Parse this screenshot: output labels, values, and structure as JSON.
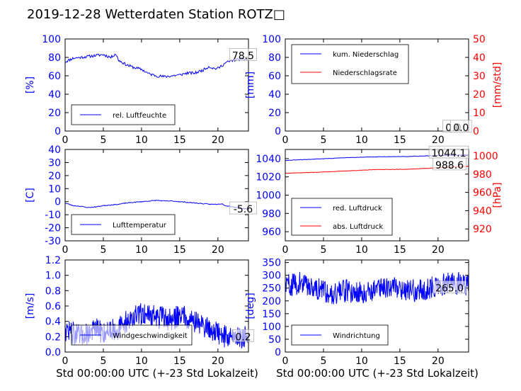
{
  "figure": {
    "title": "2019-12-28 Wetterdaten Station ROTZ□",
    "xlabel": "Std 00:00:00 UTC (+-23 Std Lokalzeit)"
  },
  "colors": {
    "blue": "#0000ff",
    "red": "#ff0000",
    "black": "#000000"
  },
  "chart_data": [
    {
      "id": "humidity",
      "type": "line",
      "ylabel": "[%]",
      "xlim": [
        0,
        24
      ],
      "ylim": [
        0,
        100
      ],
      "xticks": [
        0,
        5,
        10,
        15,
        20
      ],
      "yticks": [
        0,
        20,
        40,
        60,
        80,
        100
      ],
      "legend_position": "lower-left",
      "series": [
        {
          "name": "rel. Luftfeuchte",
          "color": "#0000ff",
          "noise": 1.5,
          "seed": 11,
          "x": [
            0,
            0.5,
            1,
            2,
            3,
            4,
            5,
            6,
            6.6,
            7,
            8,
            9,
            10,
            11,
            12,
            13,
            14,
            15,
            16,
            17,
            18,
            18.8,
            19.5,
            20,
            21,
            22,
            23,
            24
          ],
          "y": [
            75,
            77,
            79,
            80,
            81,
            82,
            83,
            80,
            84,
            77,
            72,
            69,
            67,
            62,
            60,
            59,
            60,
            61,
            63,
            63,
            66,
            70,
            68,
            68,
            74,
            77,
            78,
            78.5
          ]
        }
      ],
      "annotations": [
        {
          "text": "78.5",
          "x": 23.3,
          "y": 82
        }
      ]
    },
    {
      "id": "precipitation",
      "type": "line",
      "ylabel": "[mm]",
      "ylabel_right": "[mm/std]",
      "xlim": [
        0,
        24
      ],
      "ylim": [
        0,
        100
      ],
      "ylim_right": [
        0,
        50
      ],
      "xticks": [
        0,
        5,
        10,
        15,
        20
      ],
      "yticks": [
        0,
        20,
        40,
        60,
        80,
        100
      ],
      "yticks_right": [
        0,
        10,
        20,
        30,
        40,
        50
      ],
      "legend_position": "top-left",
      "series": [
        {
          "name": "kum. Niederschlag",
          "color": "#0000ff",
          "axis": "left",
          "x": [
            0,
            24
          ],
          "y": [
            0,
            0
          ]
        },
        {
          "name": "Niederschlagsrate",
          "color": "#ff0000",
          "axis": "right",
          "x": [
            0,
            24
          ],
          "y": [
            0,
            0
          ]
        }
      ],
      "annotations": [
        {
          "text": "0.0",
          "x": 22.0,
          "y": 4
        },
        {
          "text": "0.0",
          "x": 23.0,
          "y": 4
        }
      ]
    },
    {
      "id": "temperature",
      "type": "line",
      "ylabel": "[C]",
      "xlim": [
        0,
        24
      ],
      "ylim": [
        -30,
        40
      ],
      "xticks": [
        0,
        5,
        10,
        15,
        20
      ],
      "yticks": [
        -30,
        -20,
        -10,
        0,
        10,
        20,
        30,
        40
      ],
      "legend_position": "lower-left",
      "series": [
        {
          "name": "Lufttemperatur",
          "color": "#0000ff",
          "noise": 0.3,
          "seed": 23,
          "x": [
            0,
            0.5,
            1,
            2,
            3,
            4,
            5,
            6,
            7,
            8,
            9,
            10,
            11,
            12,
            13,
            14,
            15,
            16,
            17,
            18,
            19,
            20,
            20.5,
            21,
            22,
            23,
            24
          ],
          "y": [
            -1,
            -2,
            -3,
            -3.5,
            -4.5,
            -4,
            -3,
            -2.5,
            -2,
            -1,
            -0.5,
            0,
            0.5,
            1,
            0.5,
            0.5,
            0,
            -0.5,
            -1,
            -1.5,
            -2,
            -2,
            -1.5,
            -3,
            -4,
            -5,
            -5.6
          ]
        }
      ],
      "annotations": [
        {
          "text": "-5.6",
          "x": 23.3,
          "y": -5.6
        }
      ]
    },
    {
      "id": "pressure",
      "type": "line",
      "ylabel_right": "[hPa]",
      "xlim": [
        0,
        24
      ],
      "ylim": [
        950,
        1050
      ],
      "ylim_right": [
        907,
        1007
      ],
      "xticks": [
        0,
        5,
        10,
        15,
        20
      ],
      "yticks": [
        960,
        980,
        1000,
        1020,
        1040
      ],
      "yticks_right": [
        920,
        940,
        960,
        980,
        1000
      ],
      "legend_position": "lower-left",
      "series": [
        {
          "name": "red. Luftdruck",
          "color": "#0000ff",
          "axis": "left",
          "noise": 0.2,
          "seed": 31,
          "x": [
            0,
            4,
            8,
            12,
            16,
            20,
            24
          ],
          "y": [
            1038,
            1039.5,
            1041,
            1042,
            1042.3,
            1043.3,
            1044.1
          ]
        },
        {
          "name": "abs. Luftdruck",
          "color": "#ff0000",
          "axis": "right",
          "noise": 0.2,
          "seed": 37,
          "x": [
            0,
            4,
            8,
            12,
            16,
            20,
            24
          ],
          "y": [
            981,
            982,
            983.5,
            985,
            985.3,
            987,
            988.6
          ]
        }
      ],
      "annotations": [
        {
          "text": "1044.1",
          "x": 21.4,
          "y": 1046
        },
        {
          "text": "988.6",
          "x": 21.5,
          "y": 1033
        }
      ]
    },
    {
      "id": "wind-speed",
      "type": "line",
      "ylabel": "[m/s]",
      "xlim": [
        0,
        24
      ],
      "ylim": [
        0,
        1.2
      ],
      "xticks": [
        0,
        5,
        10,
        15,
        20
      ],
      "yticks": [
        0.0,
        0.2,
        0.4,
        0.6,
        0.8,
        1.0,
        1.2
      ],
      "legend_position": "lower-left",
      "series": [
        {
          "name": "Windgeschwindigkeit",
          "color": "#0000ff",
          "noise": 0.15,
          "seed": 47,
          "step": 0.05,
          "x": [
            0,
            1,
            2,
            3,
            4,
            5,
            6,
            7,
            8,
            9,
            10,
            11,
            12,
            13,
            14,
            15,
            16,
            17,
            18,
            19,
            20,
            21,
            22,
            23,
            24
          ],
          "y": [
            0.3,
            0.25,
            0.2,
            0.25,
            0.3,
            0.25,
            0.3,
            0.3,
            0.4,
            0.45,
            0.5,
            0.5,
            0.45,
            0.45,
            0.4,
            0.5,
            0.45,
            0.4,
            0.35,
            0.3,
            0.25,
            0.2,
            0.2,
            0.2,
            0.2
          ]
        }
      ],
      "annotations": [
        {
          "text": "0.2",
          "x": 23.3,
          "y": 0.2
        }
      ]
    },
    {
      "id": "wind-direction",
      "type": "line",
      "ylabel": "[deg]",
      "xlim": [
        0,
        24
      ],
      "ylim": [
        0,
        360
      ],
      "xticks": [
        0,
        5,
        10,
        15,
        20
      ],
      "yticks": [
        0,
        50,
        100,
        150,
        200,
        250,
        300,
        350
      ],
      "legend_position": "lower-left",
      "series": [
        {
          "name": "Windrichtung",
          "color": "#0000ff",
          "noise": 45,
          "seed": 59,
          "step": 0.05,
          "x": [
            0,
            2,
            4,
            6,
            8,
            10,
            12,
            14,
            16,
            18,
            20,
            22,
            24
          ],
          "y": [
            260,
            270,
            250,
            230,
            240,
            230,
            250,
            260,
            240,
            240,
            260,
            270,
            265
          ]
        }
      ],
      "annotations": [
        {
          "text": "265.0",
          "x": 21.5,
          "y": 250
        }
      ]
    }
  ]
}
